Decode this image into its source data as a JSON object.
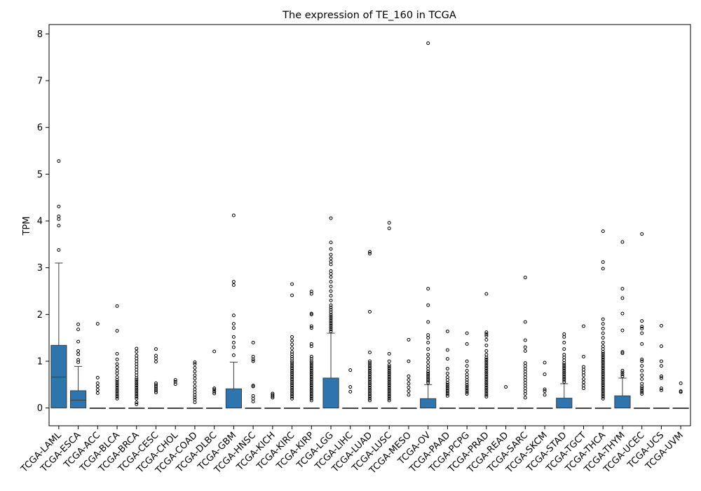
{
  "chart_data": {
    "type": "box",
    "title": "The expression of TE_160 in TCGA",
    "xlabel": "",
    "ylabel": "TPM",
    "ylim": [
      -0.38,
      8.2
    ],
    "yticks": [
      0,
      1,
      2,
      3,
      4,
      5,
      6,
      7,
      8
    ],
    "grid": false,
    "legend": "none",
    "box_color": "#2e75ad",
    "categories": [
      "TCGA-LAML",
      "TCGA-ESCA",
      "TCGA-ACC",
      "TCGA-BLCA",
      "TCGA-BRCA",
      "TCGA-CESC",
      "TCGA-CHOL",
      "TCGA-COAD",
      "TCGA-DLBC",
      "TCGA-GBM",
      "TCGA-HNSC",
      "TCGA-KICH",
      "TCGA-KIRC",
      "TCGA-KIRP",
      "TCGA-LGG",
      "TCGA-LIHC",
      "TCGA-LUAD",
      "TCGA-LUSC",
      "TCGA-MESO",
      "TCGA-OV",
      "TCGA-PAAD",
      "TCGA-PCPG",
      "TCGA-PRAD",
      "TCGA-READ",
      "TCGA-SARC",
      "TCGA-SKCM",
      "TCGA-STAD",
      "TCGA-TGCT",
      "TCGA-THCA",
      "TCGA-THYM",
      "TCGA-UCEC",
      "TCGA-UCS",
      "TCGA-UVM"
    ],
    "boxes": [
      {
        "q1": 0,
        "median": 0.66,
        "q3": 1.34,
        "whisker_low": 0,
        "whisker_high": 3.1,
        "outliers": [
          3.38,
          3.9,
          4.04,
          4.1,
          4.31,
          5.28
        ]
      },
      {
        "q1": 0,
        "median": 0.17,
        "q3": 0.37,
        "whisker_low": 0,
        "whisker_high": 0.89,
        "outliers": [
          0.98,
          1.03,
          1.15,
          1.22,
          1.42,
          1.68,
          1.79
        ]
      },
      {
        "q1": 0,
        "median": 0,
        "q3": 0,
        "whisker_low": 0,
        "whisker_high": 0,
        "outliers": [
          0.32,
          0.39,
          0.46,
          0.53,
          0.65,
          1.8
        ]
      },
      {
        "q1": 0,
        "median": 0,
        "q3": 0,
        "whisker_low": 0,
        "whisker_high": 0,
        "outliers": [
          0.2,
          0.24,
          0.28,
          0.32,
          0.36,
          0.4,
          0.44,
          0.48,
          0.52,
          0.56,
          0.6,
          0.66,
          0.74,
          0.8,
          0.87,
          0.94,
          1.04,
          1.16,
          1.65,
          2.18
        ]
      },
      {
        "q1": 0,
        "median": 0,
        "q3": 0,
        "whisker_low": 0,
        "whisker_high": 0,
        "outliers": [
          0.08,
          0.12,
          0.2,
          0.24,
          0.28,
          0.32,
          0.36,
          0.4,
          0.44,
          0.48,
          0.52,
          0.56,
          0.6,
          0.64,
          0.7,
          0.76,
          0.82,
          0.88,
          0.94,
          1.0,
          1.06,
          1.12,
          1.2,
          1.27
        ]
      },
      {
        "q1": 0,
        "median": 0,
        "q3": 0,
        "whisker_low": 0,
        "whisker_high": 0,
        "outliers": [
          0.33,
          0.37,
          0.41,
          0.45,
          0.49,
          0.53,
          0.99,
          1.06,
          1.12,
          1.26
        ]
      },
      {
        "q1": 0,
        "median": 0,
        "q3": 0,
        "whisker_low": 0,
        "whisker_high": 0,
        "outliers": [
          0.51,
          0.56,
          0.6
        ]
      },
      {
        "q1": 0,
        "median": 0,
        "q3": 0,
        "whisker_low": 0,
        "whisker_high": 0,
        "outliers": [
          0.12,
          0.18,
          0.23,
          0.28,
          0.34,
          0.4,
          0.47,
          0.55,
          0.63,
          0.7,
          0.78,
          0.86,
          0.94,
          0.98
        ]
      },
      {
        "q1": 0,
        "median": 0,
        "q3": 0,
        "whisker_low": 0,
        "whisker_high": 0,
        "outliers": [
          0.31,
          0.35,
          0.39,
          0.42,
          1.21
        ]
      },
      {
        "q1": 0,
        "median": 0,
        "q3": 0.41,
        "whisker_low": 0,
        "whisker_high": 0.98,
        "outliers": [
          1.13,
          1.3,
          1.4,
          1.52,
          1.71,
          1.8,
          1.98,
          2.63,
          2.7,
          4.12
        ]
      },
      {
        "q1": 0,
        "median": 0,
        "q3": 0,
        "whisker_low": 0,
        "whisker_high": 0,
        "outliers": [
          0.14,
          0.2,
          0.26,
          0.46,
          0.48,
          1.0,
          1.04,
          1.1,
          1.4
        ]
      },
      {
        "q1": 0,
        "median": 0,
        "q3": 0,
        "whisker_low": 0,
        "whisker_high": 0,
        "outliers": [
          0.22,
          0.25,
          0.28,
          0.31
        ]
      },
      {
        "q1": 0,
        "median": 0,
        "q3": 0,
        "whisker_low": 0,
        "whisker_high": 0,
        "outliers": [
          0.2,
          0.24,
          0.28,
          0.32,
          0.36,
          0.4,
          0.44,
          0.48,
          0.52,
          0.56,
          0.6,
          0.64,
          0.68,
          0.72,
          0.76,
          0.8,
          0.84,
          0.88,
          0.92,
          0.96,
          1.0,
          1.05,
          1.1,
          1.15,
          1.2,
          1.28,
          1.36,
          1.44,
          1.52,
          2.41,
          2.65
        ]
      },
      {
        "q1": 0,
        "median": 0,
        "q3": 0,
        "whisker_low": 0,
        "whisker_high": 0,
        "outliers": [
          0.16,
          0.2,
          0.24,
          0.28,
          0.32,
          0.36,
          0.4,
          0.44,
          0.48,
          0.52,
          0.56,
          0.6,
          0.64,
          0.68,
          0.72,
          0.76,
          0.8,
          0.84,
          0.88,
          0.92,
          0.96,
          1.0,
          1.05,
          1.1,
          1.32,
          1.37,
          1.71,
          1.75,
          2.0,
          2.02,
          2.44,
          2.49
        ]
      },
      {
        "q1": 0,
        "median": 0,
        "q3": 0.64,
        "whisker_low": 0,
        "whisker_high": 1.6,
        "outliers": [
          1.64,
          1.68,
          1.72,
          1.76,
          1.8,
          1.84,
          1.88,
          1.92,
          1.96,
          2.0,
          2.05,
          2.1,
          2.15,
          2.2,
          2.3,
          2.4,
          2.5,
          2.6,
          2.7,
          2.8,
          2.87,
          2.93,
          3.07,
          3.13,
          3.2,
          3.28,
          3.4,
          3.54,
          4.06
        ]
      },
      {
        "q1": 0,
        "median": 0,
        "q3": 0,
        "whisker_low": 0,
        "whisker_high": 0,
        "outliers": [
          0.35,
          0.45,
          0.81
        ]
      },
      {
        "q1": 0,
        "median": 0,
        "q3": 0,
        "whisker_low": 0,
        "whisker_high": 0,
        "outliers": [
          0.16,
          0.2,
          0.24,
          0.28,
          0.32,
          0.36,
          0.4,
          0.44,
          0.48,
          0.52,
          0.56,
          0.6,
          0.64,
          0.68,
          0.72,
          0.76,
          0.8,
          0.84,
          0.88,
          0.92,
          0.96,
          1.0,
          1.19,
          2.06,
          3.3,
          3.34
        ]
      },
      {
        "q1": 0,
        "median": 0,
        "q3": 0,
        "whisker_low": 0,
        "whisker_high": 0,
        "outliers": [
          0.16,
          0.2,
          0.24,
          0.28,
          0.32,
          0.36,
          0.4,
          0.44,
          0.48,
          0.52,
          0.56,
          0.6,
          0.64,
          0.68,
          0.72,
          0.76,
          0.8,
          0.84,
          0.88,
          0.92,
          1.0,
          1.16,
          3.84,
          3.96
        ]
      },
      {
        "q1": 0,
        "median": 0,
        "q3": 0,
        "whisker_low": 0,
        "whisker_high": 0,
        "outliers": [
          0.28,
          0.36,
          0.44,
          0.52,
          0.6,
          0.68,
          1.0,
          1.46
        ]
      },
      {
        "q1": 0,
        "median": 0,
        "q3": 0.2,
        "whisker_low": 0,
        "whisker_high": 0.5,
        "outliers": [
          0.54,
          0.58,
          0.62,
          0.66,
          0.7,
          0.74,
          0.78,
          0.84,
          0.9,
          0.98,
          1.06,
          1.14,
          1.26,
          1.4,
          1.5,
          1.56,
          1.84,
          2.2,
          2.55,
          7.8
        ]
      },
      {
        "q1": 0,
        "median": 0,
        "q3": 0,
        "whisker_low": 0,
        "whisker_high": 0,
        "outliers": [
          0.26,
          0.3,
          0.34,
          0.38,
          0.42,
          0.46,
          0.5,
          0.54,
          0.6,
          0.66,
          0.74,
          0.84,
          1.05,
          1.24,
          1.64
        ]
      },
      {
        "q1": 0,
        "median": 0,
        "q3": 0,
        "whisker_low": 0,
        "whisker_high": 0,
        "outliers": [
          0.3,
          0.34,
          0.38,
          0.42,
          0.46,
          0.5,
          0.55,
          0.6,
          0.66,
          0.72,
          0.8,
          0.9,
          1.0,
          1.37,
          1.6
        ]
      },
      {
        "q1": 0,
        "median": 0,
        "q3": 0,
        "whisker_low": 0,
        "whisker_high": 0,
        "outliers": [
          0.24,
          0.28,
          0.32,
          0.36,
          0.4,
          0.44,
          0.48,
          0.52,
          0.56,
          0.6,
          0.64,
          0.68,
          0.72,
          0.76,
          0.8,
          0.84,
          0.88,
          0.92,
          0.96,
          1.0,
          1.04,
          1.08,
          1.14,
          1.22,
          1.34,
          1.46,
          1.54,
          1.58,
          1.62,
          2.44
        ]
      },
      {
        "q1": 0,
        "median": 0,
        "q3": 0,
        "whisker_low": 0,
        "whisker_high": 0,
        "outliers": [
          0.45
        ]
      },
      {
        "q1": 0,
        "median": 0,
        "q3": 0,
        "whisker_low": 0,
        "whisker_high": 0,
        "outliers": [
          0.22,
          0.3,
          0.36,
          0.42,
          0.48,
          0.54,
          0.6,
          0.66,
          0.72,
          0.78,
          0.84,
          0.9,
          0.96,
          1.22,
          1.3,
          1.45,
          1.84,
          2.79
        ]
      },
      {
        "q1": 0,
        "median": 0,
        "q3": 0,
        "whisker_low": 0,
        "whisker_high": 0,
        "outliers": [
          0.28,
          0.36,
          0.4,
          0.72,
          0.97
        ]
      },
      {
        "q1": 0,
        "median": 0,
        "q3": 0.21,
        "whisker_low": 0,
        "whisker_high": 0.52,
        "outliers": [
          0.56,
          0.6,
          0.64,
          0.68,
          0.72,
          0.76,
          0.8,
          0.84,
          0.88,
          0.92,
          0.96,
          1.02,
          1.08,
          1.14,
          1.26,
          1.4,
          1.52,
          1.58
        ]
      },
      {
        "q1": 0,
        "median": 0,
        "q3": 0,
        "whisker_low": 0,
        "whisker_high": 0,
        "outliers": [
          0.42,
          0.48,
          0.55,
          0.62,
          0.7,
          0.76,
          0.82,
          0.88,
          1.1,
          1.75
        ]
      },
      {
        "q1": 0,
        "median": 0,
        "q3": 0,
        "whisker_low": 0,
        "whisker_high": 0,
        "outliers": [
          0.2,
          0.24,
          0.28,
          0.32,
          0.36,
          0.4,
          0.44,
          0.48,
          0.52,
          0.56,
          0.6,
          0.64,
          0.68,
          0.72,
          0.76,
          0.8,
          0.84,
          0.88,
          0.92,
          0.96,
          1.0,
          1.04,
          1.08,
          1.12,
          1.16,
          1.2,
          1.26,
          1.32,
          1.4,
          1.5,
          1.6,
          1.7,
          1.8,
          1.9,
          2.98,
          3.12,
          3.78
        ]
      },
      {
        "q1": 0,
        "median": 0,
        "q3": 0.26,
        "whisker_low": 0,
        "whisker_high": 0.64,
        "outliers": [
          0.68,
          0.72,
          0.76,
          0.8,
          1.17,
          1.2,
          1.66,
          2.02,
          2.35,
          2.55,
          3.55
        ]
      },
      {
        "q1": 0,
        "median": 0,
        "q3": 0,
        "whisker_low": 0,
        "whisker_high": 0,
        "outliers": [
          0.3,
          0.34,
          0.38,
          0.42,
          0.46,
          0.52,
          0.62,
          0.7,
          0.8,
          0.9,
          1.0,
          1.04,
          1.37,
          1.6,
          1.7,
          1.74,
          1.86,
          3.72
        ]
      },
      {
        "q1": 0,
        "median": 0,
        "q3": 0,
        "whisker_low": 0,
        "whisker_high": 0,
        "outliers": [
          0.38,
          0.42,
          0.64,
          0.68,
          0.9,
          1.0,
          1.32,
          1.76
        ]
      },
      {
        "q1": 0,
        "median": 0,
        "q3": 0,
        "whisker_low": 0,
        "whisker_high": 0,
        "outliers": [
          0.34,
          0.36,
          0.53
        ]
      }
    ]
  }
}
